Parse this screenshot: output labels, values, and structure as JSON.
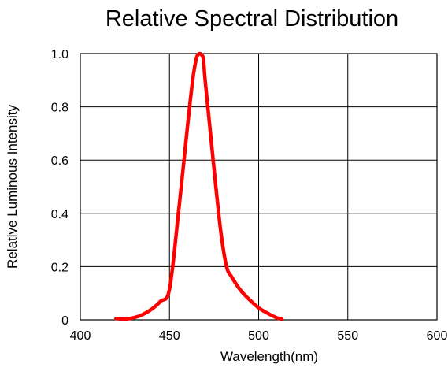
{
  "chart_data": {
    "type": "line",
    "title": "Relative Spectral Distribution",
    "xlabel": "Wavelength(nm)",
    "ylabel": "Relative Luminous Intensity",
    "xlim": [
      400,
      600
    ],
    "ylim": [
      0,
      1.0
    ],
    "x_ticks": [
      400,
      450,
      500,
      550,
      600
    ],
    "x_tick_labels": [
      "400",
      "450",
      "500",
      "550",
      "600"
    ],
    "y_ticks": [
      0,
      0.2,
      0.4,
      0.6,
      0.8,
      1.0
    ],
    "y_tick_labels": [
      "0",
      "0.2",
      "0.4",
      "0.6",
      "0.8",
      "1.0"
    ],
    "grid": true,
    "legend": "none",
    "line_color": "#ff0000",
    "series": [
      {
        "x": [
          420,
          425,
          430,
          435,
          440,
          445,
          450,
          455,
          460,
          463,
          465,
          466,
          467,
          468,
          469,
          470,
          473,
          476,
          479,
          482,
          485,
          490,
          495,
          500,
          505,
          510,
          513
        ],
        "y": [
          0.005,
          0.003,
          0.008,
          0.02,
          0.04,
          0.07,
          0.115,
          0.4,
          0.72,
          0.9,
          0.98,
          0.995,
          1.0,
          0.995,
          0.98,
          0.9,
          0.7,
          0.5,
          0.32,
          0.2,
          0.16,
          0.11,
          0.075,
          0.045,
          0.025,
          0.008,
          0.003
        ]
      }
    ]
  }
}
